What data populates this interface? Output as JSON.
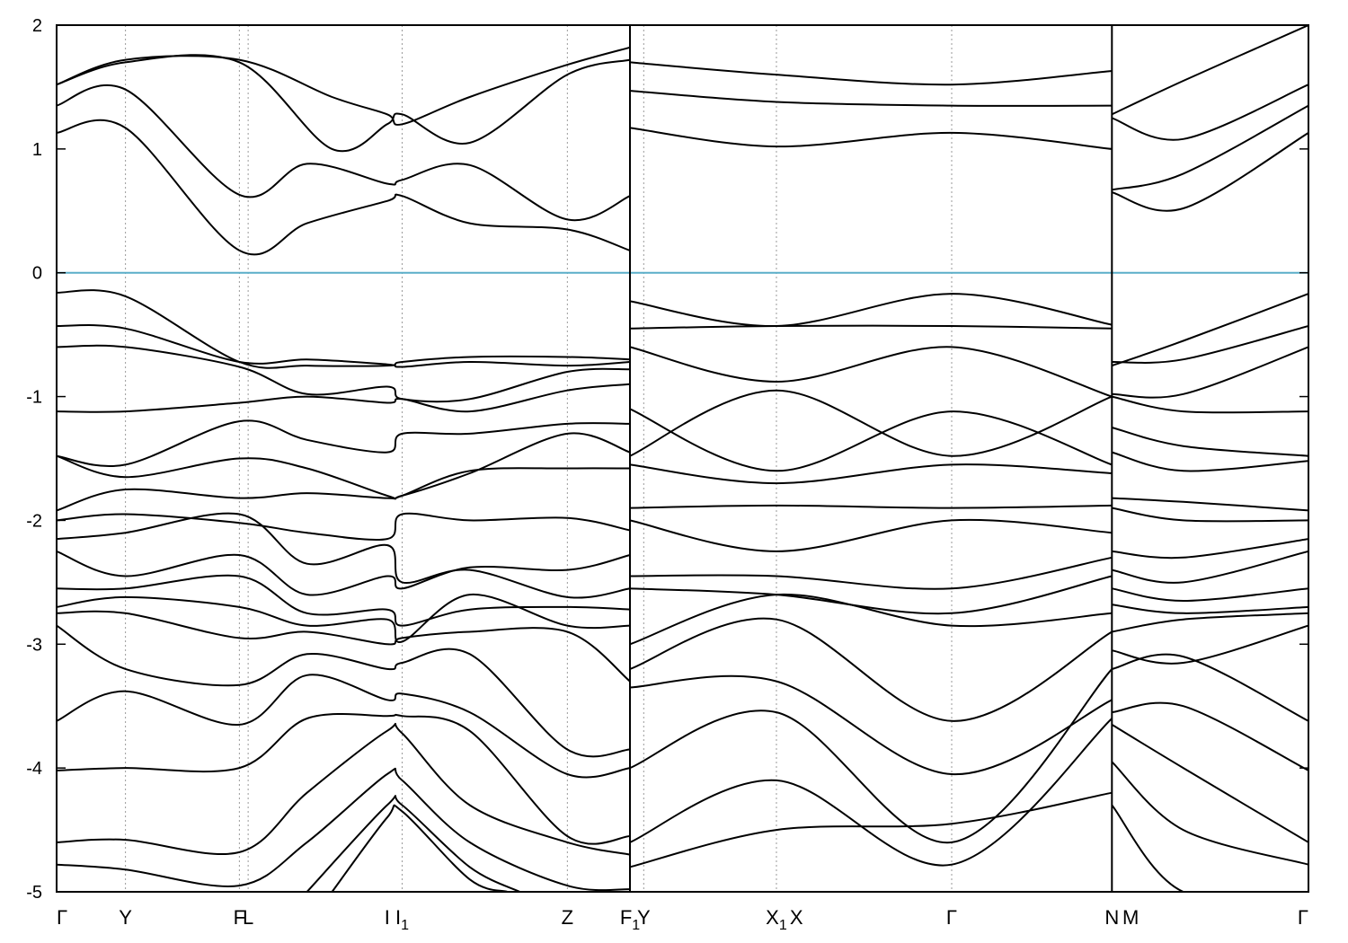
{
  "chart_data": {
    "type": "line",
    "title": "",
    "xlabel": "",
    "ylabel": "",
    "ylim": [
      -5,
      2
    ],
    "y_ticks": [
      "2",
      "1",
      "0",
      "-1",
      "-2",
      "-3",
      "-4",
      "-5"
    ],
    "x_path": [
      {
        "label": "Γ",
        "sub": "",
        "pos": 0.0
      },
      {
        "label": "Y",
        "sub": "",
        "pos": 0.055
      },
      {
        "label": "F",
        "sub": "",
        "pos": 0.146
      },
      {
        "label": "L",
        "sub": "",
        "pos": 0.153
      },
      {
        "label": "I",
        "sub": "",
        "pos": 0.264
      },
      {
        "label": "I",
        "sub": "1",
        "pos": 0.276
      },
      {
        "label": "Z",
        "sub": "",
        "pos": 0.408
      },
      {
        "label": "F",
        "sub": "1",
        "pos": 0.458
      },
      {
        "label": "Y",
        "sub": "",
        "pos": 0.469
      },
      {
        "label": "X",
        "sub": "1",
        "pos": 0.575
      },
      {
        "label": "X",
        "sub": "",
        "pos": 0.591
      },
      {
        "label": "Γ",
        "sub": "",
        "pos": 0.715
      },
      {
        "label": "N",
        "sub": "",
        "pos": 0.843
      },
      {
        "label": "M",
        "sub": "",
        "pos": 0.858
      },
      {
        "label": "Γ",
        "sub": "",
        "pos": 1.0
      }
    ],
    "vertical_guides": [
      0.055,
      0.146,
      0.153,
      0.276,
      0.408,
      0.469,
      0.575,
      0.715,
      0.843
    ],
    "breaks": [
      0.458,
      0.843
    ],
    "fermi_level": {
      "value": 0,
      "color": "#5aaec8"
    },
    "line_color": "#000000",
    "grid": "dotted vertical at high-symmetry points",
    "series": [
      {
        "segment": 1,
        "x": [
          0,
          0.055,
          0.146,
          0.2,
          0.264,
          0.276,
          0.33,
          0.408,
          0.458
        ],
        "y": [
          1.13,
          1.17,
          0.18,
          0.4,
          0.58,
          0.62,
          0.4,
          0.35,
          0.18
        ]
      },
      {
        "segment": 1,
        "x": [
          0,
          0.055,
          0.146,
          0.2,
          0.264,
          0.276,
          0.33,
          0.408,
          0.458
        ],
        "y": [
          1.35,
          1.48,
          0.63,
          0.88,
          0.72,
          0.75,
          0.87,
          0.43,
          0.62
        ]
      },
      {
        "segment": 1,
        "x": [
          0,
          0.055,
          0.146,
          0.22,
          0.264,
          0.276,
          0.33,
          0.408,
          0.458
        ],
        "y": [
          1.52,
          1.7,
          1.7,
          1.0,
          1.2,
          1.28,
          1.05,
          1.6,
          1.72
        ]
      },
      {
        "segment": 1,
        "x": [
          0,
          0.055,
          0.146,
          0.22,
          0.264,
          0.276,
          0.33,
          0.408,
          0.458
        ],
        "y": [
          1.52,
          1.72,
          1.72,
          1.42,
          1.28,
          1.2,
          1.42,
          1.68,
          1.82
        ]
      },
      {
        "segment": 1,
        "x": [
          0,
          0.055,
          0.146,
          0.2,
          0.264,
          0.276,
          0.33,
          0.408,
          0.458
        ],
        "y": [
          -0.16,
          -0.19,
          -0.72,
          -0.75,
          -0.75,
          -0.72,
          -0.68,
          -0.68,
          -0.7
        ]
      },
      {
        "segment": 1,
        "x": [
          0,
          0.055,
          0.146,
          0.2,
          0.264,
          0.276,
          0.33,
          0.408,
          0.458
        ],
        "y": [
          -0.43,
          -0.45,
          -0.72,
          -0.7,
          -0.74,
          -0.76,
          -0.72,
          -0.75,
          -0.72
        ]
      },
      {
        "segment": 1,
        "x": [
          0,
          0.055,
          0.146,
          0.2,
          0.264,
          0.276,
          0.33,
          0.408,
          0.458
        ],
        "y": [
          -0.6,
          -0.6,
          -0.76,
          -0.98,
          -0.92,
          -1.02,
          -1.02,
          -0.8,
          -0.78
        ]
      },
      {
        "segment": 1,
        "x": [
          0,
          0.055,
          0.146,
          0.2,
          0.264,
          0.276,
          0.33,
          0.408,
          0.458
        ],
        "y": [
          -1.12,
          -1.12,
          -1.05,
          -1.0,
          -1.05,
          -1.02,
          -1.12,
          -0.95,
          -0.9
        ]
      },
      {
        "segment": 1,
        "x": [
          0,
          0.055,
          0.146,
          0.2,
          0.264,
          0.276,
          0.33,
          0.408,
          0.458
        ],
        "y": [
          -1.48,
          -1.55,
          -1.2,
          -1.35,
          -1.45,
          -1.3,
          -1.3,
          -1.22,
          -1.22
        ]
      },
      {
        "segment": 1,
        "x": [
          0,
          0.055,
          0.146,
          0.2,
          0.264,
          0.276,
          0.33,
          0.408,
          0.458
        ],
        "y": [
          -1.48,
          -1.65,
          -1.5,
          -1.58,
          -1.8,
          -1.8,
          -1.62,
          -1.3,
          -1.45
        ]
      },
      {
        "segment": 1,
        "x": [
          0,
          0.055,
          0.146,
          0.2,
          0.264,
          0.276,
          0.33,
          0.408,
          0.458
        ],
        "y": [
          -1.92,
          -1.75,
          -1.82,
          -1.78,
          -1.82,
          -1.8,
          -1.6,
          -1.58,
          -1.58
        ]
      },
      {
        "segment": 1,
        "x": [
          0,
          0.055,
          0.146,
          0.2,
          0.264,
          0.276,
          0.33,
          0.408,
          0.458
        ],
        "y": [
          -2.0,
          -1.95,
          -2.02,
          -2.1,
          -2.15,
          -1.95,
          -2.0,
          -1.98,
          -2.08
        ]
      },
      {
        "segment": 1,
        "x": [
          0,
          0.055,
          0.146,
          0.2,
          0.264,
          0.276,
          0.33,
          0.408,
          0.458
        ],
        "y": [
          -2.15,
          -2.1,
          -1.95,
          -2.35,
          -2.2,
          -2.5,
          -2.4,
          -2.62,
          -2.55
        ]
      },
      {
        "segment": 1,
        "x": [
          0,
          0.055,
          0.146,
          0.2,
          0.264,
          0.276,
          0.33,
          0.408,
          0.458
        ],
        "y": [
          -2.25,
          -2.45,
          -2.28,
          -2.6,
          -2.45,
          -2.55,
          -2.38,
          -2.4,
          -2.28
        ]
      },
      {
        "segment": 1,
        "x": [
          0,
          0.055,
          0.146,
          0.2,
          0.264,
          0.276,
          0.33,
          0.408,
          0.458
        ],
        "y": [
          -2.55,
          -2.55,
          -2.45,
          -2.75,
          -2.72,
          -2.85,
          -2.72,
          -2.7,
          -2.72
        ]
      },
      {
        "segment": 1,
        "x": [
          0,
          0.055,
          0.146,
          0.2,
          0.264,
          0.276,
          0.33,
          0.408,
          0.458
        ],
        "y": [
          -2.7,
          -2.62,
          -2.7,
          -2.85,
          -2.8,
          -2.98,
          -2.6,
          -2.85,
          -2.85
        ]
      },
      {
        "segment": 1,
        "x": [
          0,
          0.055,
          0.146,
          0.2,
          0.264,
          0.276,
          0.33,
          0.408,
          0.458
        ],
        "y": [
          -2.75,
          -2.75,
          -2.95,
          -2.9,
          -3.0,
          -2.95,
          -2.9,
          -2.9,
          -3.3
        ]
      },
      {
        "segment": 1,
        "x": [
          0,
          0.055,
          0.146,
          0.2,
          0.264,
          0.276,
          0.33,
          0.408,
          0.458
        ],
        "y": [
          -2.85,
          -3.2,
          -3.33,
          -3.08,
          -3.2,
          -3.15,
          -3.08,
          -3.85,
          -3.85
        ]
      },
      {
        "segment": 1,
        "x": [
          0,
          0.055,
          0.146,
          0.2,
          0.264,
          0.276,
          0.33,
          0.408,
          0.458
        ],
        "y": [
          -3.62,
          -3.38,
          -3.65,
          -3.25,
          -3.45,
          -3.4,
          -3.55,
          -4.05,
          -4.0
        ]
      },
      {
        "segment": 1,
        "x": [
          0,
          0.055,
          0.146,
          0.2,
          0.264,
          0.276,
          0.33,
          0.408,
          0.458
        ],
        "y": [
          -4.02,
          -4.0,
          -4.0,
          -3.6,
          -3.58,
          -3.58,
          -3.7,
          -4.55,
          -4.55
        ]
      },
      {
        "segment": 1,
        "x": [
          0,
          0.055,
          0.146,
          0.2,
          0.264,
          0.276,
          0.33,
          0.408,
          0.458
        ],
        "y": [
          -4.6,
          -4.58,
          -4.68,
          -4.2,
          -3.7,
          -3.72,
          -4.3,
          -4.6,
          -4.7
        ]
      },
      {
        "segment": 1,
        "x": [
          0,
          0.055,
          0.146,
          0.2,
          0.264,
          0.276,
          0.33,
          0.408,
          0.458
        ],
        "y": [
          -4.78,
          -4.82,
          -4.95,
          -4.6,
          -4.05,
          -4.1,
          -4.6,
          -4.95,
          -4.98
        ]
      },
      {
        "segment": 1,
        "x": [
          0.2,
          0.264,
          0.276,
          0.33,
          0.37
        ],
        "y": [
          -5.0,
          -4.3,
          -4.3,
          -4.8,
          -5.0
        ]
      },
      {
        "segment": 1,
        "x": [
          0.22,
          0.264,
          0.276,
          0.33,
          0.36
        ],
        "y": [
          -5.0,
          -4.4,
          -4.35,
          -4.9,
          -5.0
        ]
      },
      {
        "segment": 2,
        "x": [
          0.458,
          0.575,
          0.715,
          0.843
        ],
        "y": [
          1.17,
          1.02,
          1.13,
          1.0
        ]
      },
      {
        "segment": 2,
        "x": [
          0.458,
          0.575,
          0.715,
          0.843
        ],
        "y": [
          1.47,
          1.38,
          1.35,
          1.35
        ]
      },
      {
        "segment": 2,
        "x": [
          0.458,
          0.575,
          0.715,
          0.843
        ],
        "y": [
          1.7,
          1.6,
          1.52,
          1.63
        ]
      },
      {
        "segment": 2,
        "x": [
          0.458,
          0.575,
          0.715,
          0.843
        ],
        "y": [
          -0.23,
          -0.43,
          -0.17,
          -0.42
        ]
      },
      {
        "segment": 2,
        "x": [
          0.458,
          0.575,
          0.715,
          0.843
        ],
        "y": [
          -0.45,
          -0.43,
          -0.43,
          -0.45
        ]
      },
      {
        "segment": 2,
        "x": [
          0.458,
          0.575,
          0.715,
          0.843
        ],
        "y": [
          -0.6,
          -0.88,
          -0.6,
          -1.0
        ]
      },
      {
        "segment": 2,
        "x": [
          0.458,
          0.575,
          0.715,
          0.843
        ],
        "y": [
          -1.1,
          -1.6,
          -1.12,
          -1.55
        ]
      },
      {
        "segment": 2,
        "x": [
          0.458,
          0.575,
          0.715,
          0.843
        ],
        "y": [
          -1.48,
          -0.95,
          -1.48,
          -1.0
        ]
      },
      {
        "segment": 2,
        "x": [
          0.458,
          0.575,
          0.715,
          0.843
        ],
        "y": [
          -1.55,
          -1.7,
          -1.55,
          -1.62
        ]
      },
      {
        "segment": 2,
        "x": [
          0.458,
          0.575,
          0.715,
          0.843
        ],
        "y": [
          -1.9,
          -1.88,
          -1.9,
          -1.88
        ]
      },
      {
        "segment": 2,
        "x": [
          0.458,
          0.575,
          0.715,
          0.843
        ],
        "y": [
          -2.0,
          -2.25,
          -2.0,
          -2.1
        ]
      },
      {
        "segment": 2,
        "x": [
          0.458,
          0.575,
          0.715,
          0.843
        ],
        "y": [
          -2.45,
          -2.45,
          -2.55,
          -2.3
        ]
      },
      {
        "segment": 2,
        "x": [
          0.458,
          0.575,
          0.715,
          0.843
        ],
        "y": [
          -2.55,
          -2.6,
          -2.75,
          -2.45
        ]
      },
      {
        "segment": 2,
        "x": [
          0.458,
          0.575,
          0.715,
          0.843
        ],
        "y": [
          -3.0,
          -2.6,
          -2.85,
          -2.75
        ]
      },
      {
        "segment": 2,
        "x": [
          0.458,
          0.575,
          0.715,
          0.843
        ],
        "y": [
          -3.2,
          -2.8,
          -3.62,
          -2.9
        ]
      },
      {
        "segment": 2,
        "x": [
          0.458,
          0.575,
          0.715,
          0.843
        ],
        "y": [
          -3.35,
          -3.3,
          -4.05,
          -3.45
        ]
      },
      {
        "segment": 2,
        "x": [
          0.458,
          0.575,
          0.715,
          0.843
        ],
        "y": [
          -4.0,
          -3.55,
          -4.6,
          -3.2
        ]
      },
      {
        "segment": 2,
        "x": [
          0.458,
          0.575,
          0.715,
          0.843
        ],
        "y": [
          -4.6,
          -4.1,
          -4.78,
          -3.6
        ]
      },
      {
        "segment": 2,
        "x": [
          0.458,
          0.575,
          0.715,
          0.843
        ],
        "y": [
          -4.8,
          -4.5,
          -4.45,
          -4.2
        ]
      },
      {
        "segment": 3,
        "x": [
          0.843,
          0.9,
          1.0
        ],
        "y": [
          1.28,
          1.55,
          2.0
        ]
      },
      {
        "segment": 3,
        "x": [
          0.843,
          0.9,
          1.0
        ],
        "y": [
          1.25,
          1.08,
          1.52
        ]
      },
      {
        "segment": 3,
        "x": [
          0.843,
          0.9,
          1.0
        ],
        "y": [
          0.67,
          0.8,
          1.35
        ]
      },
      {
        "segment": 3,
        "x": [
          0.843,
          0.9,
          1.0
        ],
        "y": [
          0.65,
          0.52,
          1.13
        ]
      },
      {
        "segment": 3,
        "x": [
          0.843,
          0.9,
          1.0
        ],
        "y": [
          -0.75,
          -0.55,
          -0.17
        ]
      },
      {
        "segment": 3,
        "x": [
          0.843,
          0.9,
          1.0
        ],
        "y": [
          -0.72,
          -0.7,
          -0.43
        ]
      },
      {
        "segment": 3,
        "x": [
          0.843,
          0.9,
          1.0
        ],
        "y": [
          -0.98,
          -0.98,
          -0.6
        ]
      },
      {
        "segment": 3,
        "x": [
          0.843,
          0.9,
          1.0
        ],
        "y": [
          -1.0,
          -1.12,
          -1.12
        ]
      },
      {
        "segment": 3,
        "x": [
          0.843,
          0.9,
          1.0
        ],
        "y": [
          -1.25,
          -1.4,
          -1.48
        ]
      },
      {
        "segment": 3,
        "x": [
          0.843,
          0.9,
          1.0
        ],
        "y": [
          -1.45,
          -1.6,
          -1.52
        ]
      },
      {
        "segment": 3,
        "x": [
          0.843,
          0.9,
          1.0
        ],
        "y": [
          -1.82,
          -1.85,
          -1.92
        ]
      },
      {
        "segment": 3,
        "x": [
          0.843,
          0.9,
          1.0
        ],
        "y": [
          -1.9,
          -2.0,
          -2.0
        ]
      },
      {
        "segment": 3,
        "x": [
          0.843,
          0.9,
          1.0
        ],
        "y": [
          -2.25,
          -2.3,
          -2.15
        ]
      },
      {
        "segment": 3,
        "x": [
          0.843,
          0.9,
          1.0
        ],
        "y": [
          -2.4,
          -2.5,
          -2.25
        ]
      },
      {
        "segment": 3,
        "x": [
          0.843,
          0.9,
          1.0
        ],
        "y": [
          -2.55,
          -2.65,
          -2.55
        ]
      },
      {
        "segment": 3,
        "x": [
          0.843,
          0.9,
          1.0
        ],
        "y": [
          -2.68,
          -2.75,
          -2.7
        ]
      },
      {
        "segment": 3,
        "x": [
          0.843,
          0.9,
          1.0
        ],
        "y": [
          -2.9,
          -2.8,
          -2.75
        ]
      },
      {
        "segment": 3,
        "x": [
          0.843,
          0.9,
          1.0
        ],
        "y": [
          -3.05,
          -3.15,
          -2.85
        ]
      },
      {
        "segment": 3,
        "x": [
          0.843,
          0.9,
          1.0
        ],
        "y": [
          -3.2,
          -3.1,
          -3.62
        ]
      },
      {
        "segment": 3,
        "x": [
          0.843,
          0.9,
          1.0
        ],
        "y": [
          -3.55,
          -3.5,
          -4.02
        ]
      },
      {
        "segment": 3,
        "x": [
          0.843,
          0.9,
          1.0
        ],
        "y": [
          -3.65,
          -4.0,
          -4.6
        ]
      },
      {
        "segment": 3,
        "x": [
          0.843,
          0.9,
          1.0
        ],
        "y": [
          -3.95,
          -4.5,
          -4.78
        ]
      },
      {
        "segment": 3,
        "x": [
          0.843,
          0.9,
          1.0
        ],
        "y": [
          -4.3,
          -5.0,
          -5.0
        ]
      }
    ]
  }
}
